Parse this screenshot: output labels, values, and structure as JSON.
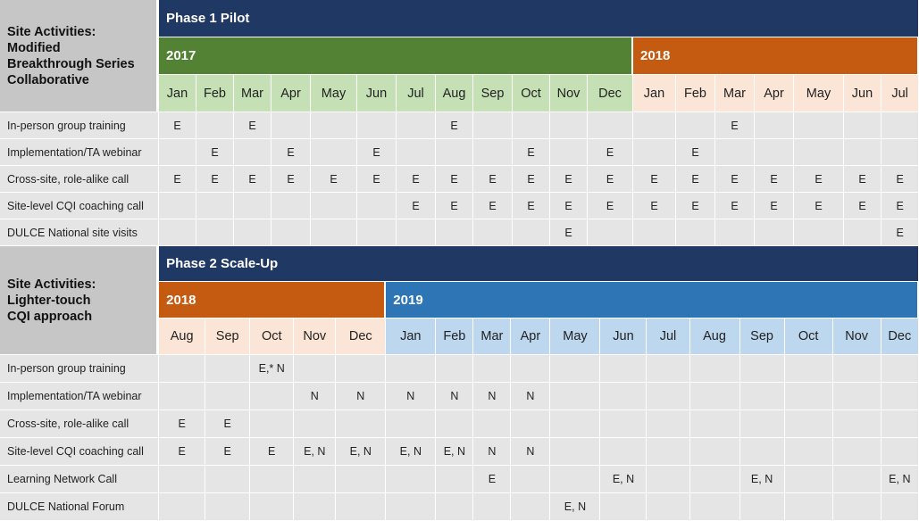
{
  "phase1": {
    "corner": [
      "Site Activities:",
      "Modified",
      "Breakthrough Series",
      "Collaborative"
    ],
    "phase_label": "Phase 1 Pilot",
    "years": [
      {
        "label": "2017",
        "color": "#548235"
      },
      {
        "label": "2018",
        "color": "#c55a11"
      }
    ],
    "months_2017": [
      "Jan",
      "Feb",
      "Mar",
      "Apr",
      "May",
      "Jun",
      "Jul",
      "Aug",
      "Sep",
      "Oct",
      "Nov",
      "Dec"
    ],
    "months_2018": [
      "Jan",
      "Feb",
      "Mar",
      "Apr",
      "May",
      "Jun",
      "Jul"
    ],
    "rows": [
      {
        "activity": "In-person group training",
        "cells": [
          "E",
          "",
          "E",
          "",
          "",
          "",
          "",
          "E",
          "",
          "",
          "",
          "",
          "",
          "",
          "E",
          "",
          "",
          "",
          ""
        ]
      },
      {
        "activity": "Implementation/TA webinar",
        "cells": [
          "",
          "E",
          "",
          "E",
          "",
          "E",
          "",
          "",
          "",
          "E",
          "",
          "E",
          "",
          "E",
          "",
          "",
          "",
          "",
          ""
        ]
      },
      {
        "activity": "Cross-site, role-alike call",
        "cells": [
          "E",
          "E",
          "E",
          "E",
          "E",
          "E",
          "E",
          "E",
          "E",
          "E",
          "E",
          "E",
          "E",
          "E",
          "E",
          "E",
          "E",
          "E",
          "E"
        ]
      },
      {
        "activity": "Site-level CQI coaching call",
        "cells": [
          "",
          "",
          "",
          "",
          "",
          "",
          "E",
          "E",
          "E",
          "E",
          "E",
          "E",
          "E",
          "E",
          "E",
          "E",
          "E",
          "E",
          "E"
        ]
      },
      {
        "activity": "DULCE National site visits",
        "cells": [
          "",
          "",
          "",
          "",
          "",
          "",
          "",
          "",
          "",
          "",
          "E",
          "",
          "",
          "",
          "",
          "",
          "",
          "",
          "E"
        ]
      }
    ]
  },
  "phase2": {
    "corner": [
      "Site Activities:",
      "Lighter-touch",
      "CQI approach"
    ],
    "phase_label": "Phase 2 Scale-Up",
    "years": [
      {
        "label": "2018",
        "color": "#c55a11"
      },
      {
        "label": "2019",
        "color": "#2e75b6"
      }
    ],
    "months_2018": [
      "Aug",
      "Sep",
      "Oct",
      "Nov",
      "Dec"
    ],
    "months_2019": [
      "Jan",
      "Feb",
      "Mar",
      "Apr",
      "May",
      "Jun",
      "Jul",
      "Aug",
      "Sep",
      "Oct",
      "Nov",
      "Dec"
    ],
    "rows": [
      {
        "activity": "In-person group training",
        "cells": [
          "",
          "",
          "E,* N",
          "",
          "",
          "",
          "",
          "",
          "",
          "",
          "",
          "",
          "",
          "",
          "",
          "",
          ""
        ]
      },
      {
        "activity": "Implementation/TA webinar",
        "cells": [
          "",
          "",
          "",
          "N",
          "N",
          "N",
          "N",
          "N",
          "N",
          "",
          "",
          "",
          "",
          "",
          "",
          "",
          ""
        ]
      },
      {
        "activity": "Cross-site, role-alike call",
        "cells": [
          "E",
          "E",
          "",
          "",
          "",
          "",
          "",
          "",
          "",
          "",
          "",
          "",
          "",
          "",
          "",
          "",
          ""
        ]
      },
      {
        "activity": "Site-level CQI coaching call",
        "cells": [
          "E",
          "E",
          "E",
          "E, N",
          "E, N",
          "E, N",
          "E, N",
          "N",
          "N",
          "",
          "",
          "",
          "",
          "",
          "",
          "",
          ""
        ]
      },
      {
        "activity": "Learning Network Call",
        "cells": [
          "",
          "",
          "",
          "",
          "",
          "",
          "",
          "E",
          "",
          "",
          "E, N",
          "",
          "",
          "E, N",
          "",
          "",
          "E, N"
        ]
      },
      {
        "activity": "DULCE National Forum",
        "cells": [
          "",
          "",
          "",
          "",
          "",
          "",
          "",
          "",
          "",
          "E, N",
          "",
          "",
          "",
          "",
          "",
          "",
          ""
        ]
      }
    ]
  }
}
